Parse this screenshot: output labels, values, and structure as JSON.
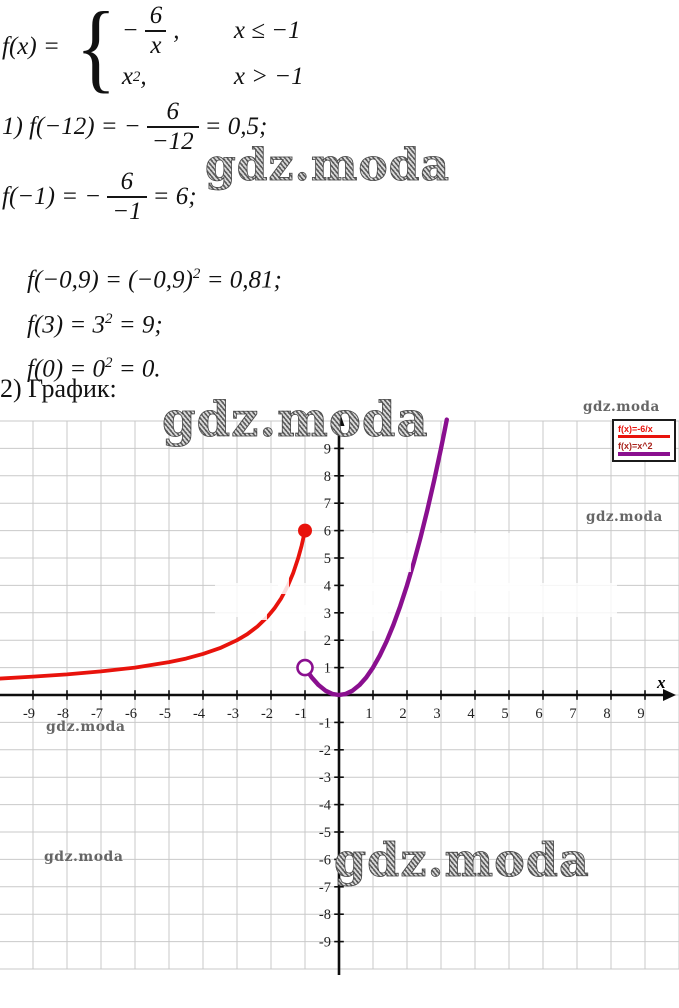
{
  "watermark_text": "gdz.moda",
  "problem": {
    "func_lhs": "f(x) =",
    "brace": "{",
    "case1": {
      "minus": "−",
      "num": "6",
      "den": "x",
      "comma": ",",
      "cond": "x ≤ −1"
    },
    "case2": {
      "base": "x",
      "sup": "2",
      "comma": ",",
      "cond": "x > −1"
    }
  },
  "steps": [
    {
      "pre": "1) f(−12) = −",
      "num": "6",
      "den": "−12",
      "post": "= 0,5;"
    },
    {
      "pre": "f(−1) = −",
      "num": "6",
      "den": "−1",
      "post": "= 6;"
    },
    {
      "pre": "f(−0,9) = (−0,9)",
      "sup": "2",
      "post": " = 0,81;"
    },
    {
      "pre": "f(3) = 3",
      "sup": "2",
      "post": " = 9;"
    },
    {
      "pre": "f(0) = 0",
      "sup": "2",
      "post": " = 0."
    }
  ],
  "section2_label": "2) График:",
  "chart_data": {
    "type": "line",
    "title": "",
    "xlabel": "x",
    "ylabel": "",
    "xlim": [
      -10,
      10
    ],
    "ylim": [
      -10,
      10
    ],
    "grid": true,
    "grid_color": "#c9c9c9",
    "axis_color": "#0d0d0d",
    "legend_position": "top-right",
    "x_ticks": [
      "-9",
      "-8",
      "-7",
      "-6",
      "-5",
      "-4",
      "-3",
      "-2",
      "-1",
      "1",
      "2",
      "3",
      "4",
      "5",
      "6",
      "7",
      "8",
      "9"
    ],
    "y_ticks": [
      "9",
      "8",
      "7",
      "6",
      "5",
      "4",
      "3",
      "2",
      "1",
      "-1",
      "-2",
      "-3",
      "-4",
      "-5",
      "-6",
      "-7",
      "-8",
      "-9"
    ],
    "legend": [
      {
        "label": "f(x)=-6/x",
        "text_color": "#e8130c",
        "color": "#e8130c"
      },
      {
        "label": "f(x)=x^2",
        "text_color": "#a8231c",
        "color": "#8a0f8f"
      }
    ],
    "series": [
      {
        "name": "f(x)=-6/x",
        "condition": "x ≤ -1",
        "color": "#e8130c",
        "width": 3.8,
        "points": [
          [
            -10,
            0.6
          ],
          [
            -9,
            0.67
          ],
          [
            -8,
            0.75
          ],
          [
            -7,
            0.86
          ],
          [
            -6,
            1
          ],
          [
            -5,
            1.2
          ],
          [
            -4.5,
            1.33
          ],
          [
            -4,
            1.5
          ],
          [
            -3.5,
            1.71
          ],
          [
            -3,
            2
          ],
          [
            -2.7,
            2.22
          ],
          [
            -2.4,
            2.5
          ],
          [
            -2.1,
            2.86
          ],
          [
            -1.9,
            3.16
          ],
          [
            -1.7,
            3.53
          ],
          [
            -1.5,
            4
          ],
          [
            -1.35,
            4.44
          ],
          [
            -1.2,
            5
          ],
          [
            -1.1,
            5.45
          ],
          [
            -1,
            6
          ]
        ],
        "endpoint": {
          "x": -1,
          "y": 6,
          "style": "filled"
        }
      },
      {
        "name": "f(x)=x^2",
        "condition": "x > -1",
        "color": "#8a0f8f",
        "width": 4.4,
        "points": [
          [
            -1,
            1
          ],
          [
            -0.8,
            0.64
          ],
          [
            -0.6,
            0.36
          ],
          [
            -0.4,
            0.16
          ],
          [
            -0.2,
            0.04
          ],
          [
            0,
            0
          ],
          [
            0.2,
            0.04
          ],
          [
            0.4,
            0.16
          ],
          [
            0.6,
            0.36
          ],
          [
            0.8,
            0.64
          ],
          [
            1,
            1
          ],
          [
            1.2,
            1.44
          ],
          [
            1.4,
            1.96
          ],
          [
            1.6,
            2.56
          ],
          [
            1.8,
            3.24
          ],
          [
            2,
            4
          ],
          [
            2.2,
            4.84
          ],
          [
            2.4,
            5.76
          ],
          [
            2.6,
            6.76
          ],
          [
            2.8,
            7.84
          ],
          [
            3,
            9
          ],
          [
            3.1,
            9.61
          ],
          [
            3.17,
            10.05
          ]
        ],
        "endpoint": {
          "x": -1,
          "y": 1,
          "style": "open"
        }
      }
    ]
  }
}
